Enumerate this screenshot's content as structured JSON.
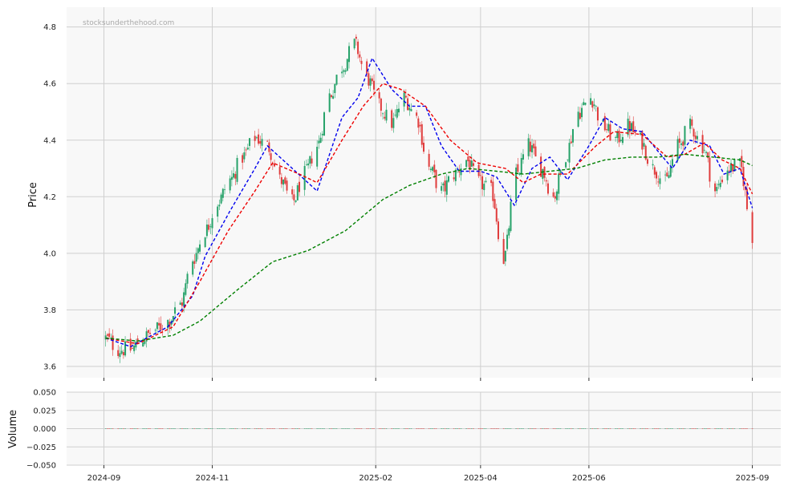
{
  "watermark": "stocksunderthehood.com",
  "colors": {
    "up": "#26a269",
    "down": "#e03c3c",
    "ma_fast": "#0000ee",
    "ma_mid": "#ee0000",
    "ma_slow": "#008000",
    "grid": "#cfcfcf",
    "panel": "#f8f8f8"
  },
  "chart_data": [
    {
      "type": "candlestick",
      "ylabel": "Price",
      "ylim": [
        3.56,
        4.87
      ],
      "yticks": [
        3.6,
        3.8,
        4.0,
        4.2,
        4.4,
        4.6,
        4.8
      ],
      "ytick_labels": [
        "3.6",
        "3.8",
        "4.0",
        "4.2",
        "4.4",
        "4.6",
        "4.8"
      ],
      "xticks": [
        "2024-09-01",
        "2024-11-01",
        "2025-02-01",
        "2025-04-01",
        "2025-06-01",
        "2025-09-01"
      ],
      "xtick_labels": [
        "2024-09",
        "2024-11",
        "2025-02",
        "2025-04",
        "2025-06",
        "2025-09"
      ],
      "xlim": [
        "2024-08-11",
        "2025-09-17"
      ],
      "grid": true,
      "close_series": [
        [
          "2024-09-02",
          3.7
        ],
        [
          "2024-09-09",
          3.66
        ],
        [
          "2024-09-16",
          3.66
        ],
        [
          "2024-09-23",
          3.7
        ],
        [
          "2024-09-30",
          3.73
        ],
        [
          "2024-10-07",
          3.76
        ],
        [
          "2024-10-14",
          3.82
        ],
        [
          "2024-10-21",
          3.98
        ],
        [
          "2024-10-28",
          4.08
        ],
        [
          "2024-11-04",
          4.18
        ],
        [
          "2024-11-11",
          4.26
        ],
        [
          "2024-11-18",
          4.34
        ],
        [
          "2024-11-25",
          4.41
        ],
        [
          "2024-12-02",
          4.38
        ],
        [
          "2024-12-09",
          4.26
        ],
        [
          "2024-12-16",
          4.18
        ],
        [
          "2024-12-23",
          4.28
        ],
        [
          "2024-12-30",
          4.38
        ],
        [
          "2025-01-06",
          4.56
        ],
        [
          "2025-01-13",
          4.66
        ],
        [
          "2025-01-20",
          4.74
        ],
        [
          "2025-01-27",
          4.62
        ],
        [
          "2025-02-03",
          4.52
        ],
        [
          "2025-02-10",
          4.46
        ],
        [
          "2025-02-17",
          4.55
        ],
        [
          "2025-02-24",
          4.48
        ],
        [
          "2025-03-03",
          4.3
        ],
        [
          "2025-03-10",
          4.22
        ],
        [
          "2025-03-17",
          4.28
        ],
        [
          "2025-03-24",
          4.33
        ],
        [
          "2025-03-31",
          4.25
        ],
        [
          "2025-04-07",
          4.22
        ],
        [
          "2025-04-14",
          3.98
        ],
        [
          "2025-04-21",
          4.28
        ],
        [
          "2025-04-28",
          4.38
        ],
        [
          "2025-05-05",
          4.3
        ],
        [
          "2025-05-12",
          4.2
        ],
        [
          "2025-05-19",
          4.35
        ],
        [
          "2025-05-26",
          4.5
        ],
        [
          "2025-06-02",
          4.55
        ],
        [
          "2025-06-09",
          4.45
        ],
        [
          "2025-06-16",
          4.4
        ],
        [
          "2025-06-23",
          4.45
        ],
        [
          "2025-06-30",
          4.4
        ],
        [
          "2025-07-07",
          4.3
        ],
        [
          "2025-07-14",
          4.25
        ],
        [
          "2025-07-21",
          4.38
        ],
        [
          "2025-07-28",
          4.45
        ],
        [
          "2025-08-04",
          4.38
        ],
        [
          "2025-08-11",
          4.22
        ],
        [
          "2025-08-18",
          4.3
        ],
        [
          "2025-08-25",
          4.31
        ],
        [
          "2025-09-01",
          4.06
        ]
      ],
      "series": [
        {
          "name": "",
          "style": "dashed",
          "color": "#0000ee",
          "points": [
            [
              "2024-09-02",
              3.7
            ],
            [
              "2024-09-16",
              3.67
            ],
            [
              "2024-10-07",
              3.74
            ],
            [
              "2024-10-21",
              3.85
            ],
            [
              "2024-10-28",
              3.99
            ],
            [
              "2024-11-11",
              4.15
            ],
            [
              "2024-11-25",
              4.3
            ],
            [
              "2024-12-02",
              4.38
            ],
            [
              "2024-12-16",
              4.3
            ],
            [
              "2024-12-30",
              4.22
            ],
            [
              "2025-01-13",
              4.48
            ],
            [
              "2025-01-22",
              4.55
            ],
            [
              "2025-01-30",
              4.69
            ],
            [
              "2025-02-10",
              4.58
            ],
            [
              "2025-02-20",
              4.52
            ],
            [
              "2025-03-01",
              4.52
            ],
            [
              "2025-03-10",
              4.38
            ],
            [
              "2025-03-20",
              4.29
            ],
            [
              "2025-04-01",
              4.29
            ],
            [
              "2025-04-10",
              4.27
            ],
            [
              "2025-04-20",
              4.17
            ],
            [
              "2025-04-30",
              4.3
            ],
            [
              "2025-05-10",
              4.34
            ],
            [
              "2025-05-20",
              4.26
            ],
            [
              "2025-06-01",
              4.38
            ],
            [
              "2025-06-10",
              4.48
            ],
            [
              "2025-06-20",
              4.44
            ],
            [
              "2025-07-01",
              4.43
            ],
            [
              "2025-07-10",
              4.36
            ],
            [
              "2025-07-18",
              4.3
            ],
            [
              "2025-07-28",
              4.4
            ],
            [
              "2025-08-08",
              4.38
            ],
            [
              "2025-08-16",
              4.28
            ],
            [
              "2025-08-25",
              4.3
            ],
            [
              "2025-09-01",
              4.16
            ]
          ]
        },
        {
          "name": "",
          "style": "dashed",
          "color": "#ee0000",
          "points": [
            [
              "2024-09-02",
              3.7
            ],
            [
              "2024-09-20",
              3.68
            ],
            [
              "2024-10-10",
              3.74
            ],
            [
              "2024-10-25",
              3.9
            ],
            [
              "2024-11-10",
              4.08
            ],
            [
              "2024-11-25",
              4.22
            ],
            [
              "2024-12-05",
              4.32
            ],
            [
              "2024-12-20",
              4.28
            ],
            [
              "2024-12-30",
              4.25
            ],
            [
              "2025-01-13",
              4.4
            ],
            [
              "2025-01-25",
              4.52
            ],
            [
              "2025-02-05",
              4.6
            ],
            [
              "2025-02-15",
              4.58
            ],
            [
              "2025-03-01",
              4.52
            ],
            [
              "2025-03-15",
              4.4
            ],
            [
              "2025-03-30",
              4.32
            ],
            [
              "2025-04-15",
              4.3
            ],
            [
              "2025-04-25",
              4.25
            ],
            [
              "2025-05-05",
              4.28
            ],
            [
              "2025-05-20",
              4.28
            ],
            [
              "2025-06-05",
              4.38
            ],
            [
              "2025-06-15",
              4.43
            ],
            [
              "2025-07-01",
              4.42
            ],
            [
              "2025-07-15",
              4.34
            ],
            [
              "2025-07-25",
              4.35
            ],
            [
              "2025-08-05",
              4.39
            ],
            [
              "2025-08-15",
              4.33
            ],
            [
              "2025-08-25",
              4.3
            ],
            [
              "2025-09-01",
              4.21
            ]
          ]
        },
        {
          "name": "",
          "style": "dashed",
          "color": "#008000",
          "points": [
            [
              "2024-09-02",
              3.7
            ],
            [
              "2024-09-20",
              3.69
            ],
            [
              "2024-10-10",
              3.71
            ],
            [
              "2024-10-25",
              3.76
            ],
            [
              "2024-11-15",
              3.87
            ],
            [
              "2024-12-05",
              3.97
            ],
            [
              "2024-12-25",
              4.01
            ],
            [
              "2025-01-15",
              4.08
            ],
            [
              "2025-02-05",
              4.19
            ],
            [
              "2025-02-20",
              4.24
            ],
            [
              "2025-03-10",
              4.28
            ],
            [
              "2025-03-25",
              4.3
            ],
            [
              "2025-04-10",
              4.29
            ],
            [
              "2025-04-25",
              4.28
            ],
            [
              "2025-05-10",
              4.29
            ],
            [
              "2025-05-25",
              4.3
            ],
            [
              "2025-06-10",
              4.33
            ],
            [
              "2025-06-25",
              4.34
            ],
            [
              "2025-07-10",
              4.34
            ],
            [
              "2025-07-25",
              4.35
            ],
            [
              "2025-08-10",
              4.34
            ],
            [
              "2025-08-25",
              4.33
            ],
            [
              "2025-09-01",
              4.31
            ]
          ]
        }
      ]
    },
    {
      "type": "bar",
      "ylabel": "Volume",
      "ylim": [
        -0.05,
        0.05
      ],
      "yticks": [
        -0.05,
        -0.025,
        0,
        0.025,
        0.05
      ],
      "ytick_labels": [
        "−0.050",
        "−0.025",
        "0.000",
        "0.025",
        "0.050"
      ],
      "grid": true,
      "note_values": "all volume bars are zero"
    }
  ]
}
